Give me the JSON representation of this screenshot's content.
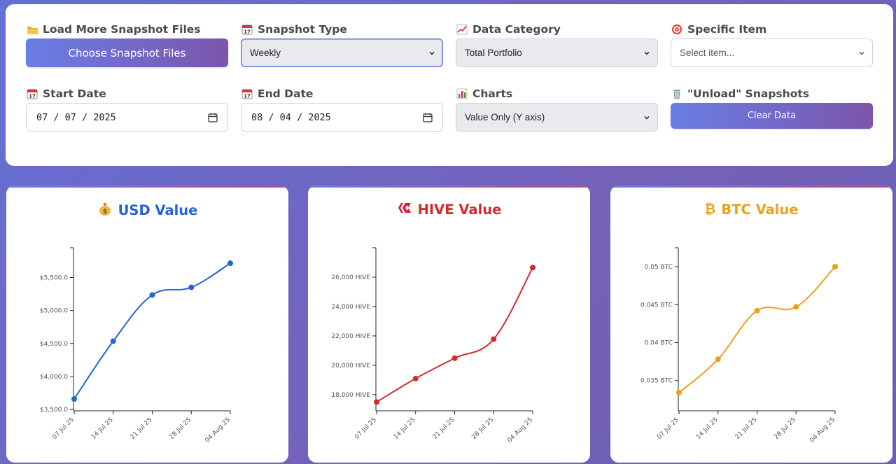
{
  "controls": {
    "load_files": {
      "label": "Load More Snapshot Files",
      "button": "Choose Snapshot Files"
    },
    "snapshot_type": {
      "label": "Snapshot Type",
      "value": "Weekly"
    },
    "data_category": {
      "label": "Data Category",
      "value": "Total Portfolio"
    },
    "specific_item": {
      "label": "Specific Item",
      "placeholder": "Select item..."
    },
    "start_date": {
      "label": "Start Date",
      "value": "07 / 07 / 2025"
    },
    "end_date": {
      "label": "End Date",
      "value": "08 / 04 / 2025"
    },
    "charts": {
      "label": "Charts",
      "value": "Value Only (Y axis)"
    },
    "unload": {
      "label": "\"Unload\" Snapshots",
      "button": "Clear Data"
    }
  },
  "colors": {
    "usd": "#2463d4",
    "hive": "#d42a2f",
    "btc": "#eba21b",
    "accent_start": "#6a7ee6",
    "accent_end": "#7b55ab"
  },
  "icons": {
    "load_files": "folder-icon",
    "snapshot_type": "calendar-icon",
    "data_category": "chart-increasing-icon",
    "specific_item": "target-icon",
    "start_date": "calendar-icon",
    "end_date": "calendar-icon",
    "charts": "bar-chart-icon",
    "unload": "wastebasket-icon",
    "usd": "money-bag-icon",
    "hive": "hive-logo-icon",
    "btc": "bitcoin-icon"
  },
  "chart_data": [
    {
      "type": "line",
      "title": "USD Value",
      "x": [
        "07 Jul 25",
        "14 Jul 25",
        "21 Jul 25",
        "28 Jul 25",
        "04 Aug 25"
      ],
      "values": [
        3660,
        4535,
        5235,
        5350,
        5715
      ],
      "ylim": [
        3480,
        5950
      ],
      "yticks": [
        3500,
        4000,
        4500,
        5000,
        5500
      ],
      "ytick_labels": [
        "$3,500.0",
        "$4,000.0",
        "$4,500.0",
        "$5,000.0",
        "$5,500.0"
      ],
      "color": "#2463d4",
      "grid": false
    },
    {
      "type": "line",
      "title": "HIVE Value",
      "x": [
        "07 Jul 25",
        "14 Jul 25",
        "21 Jul 25",
        "28 Jul 25",
        "04 Aug 25"
      ],
      "values": [
        17500,
        19100,
        20480,
        21780,
        26650
      ],
      "ylim": [
        16900,
        28000
      ],
      "yticks": [
        18000,
        20000,
        22000,
        24000,
        26000
      ],
      "ytick_labels": [
        "18,000 HIVE",
        "20,000 HIVE",
        "22,000 HIVE",
        "24,000 HIVE",
        "26,000 HIVE"
      ],
      "color": "#d42a2f",
      "grid": false
    },
    {
      "type": "line",
      "title": "BTC Value",
      "x": [
        "07 Jul 25",
        "14 Jul 25",
        "21 Jul 25",
        "28 Jul 25",
        "04 Aug 25"
      ],
      "values": [
        0.0334,
        0.0378,
        0.0442,
        0.0447,
        0.05
      ],
      "ylim": [
        0.031,
        0.0525
      ],
      "yticks": [
        0.035,
        0.04,
        0.045,
        0.05
      ],
      "ytick_labels": [
        "0.035 BTC",
        "0.04 BTC",
        "0.045 BTC",
        "0.05 BTC"
      ],
      "color": "#eba21b",
      "grid": false
    }
  ]
}
